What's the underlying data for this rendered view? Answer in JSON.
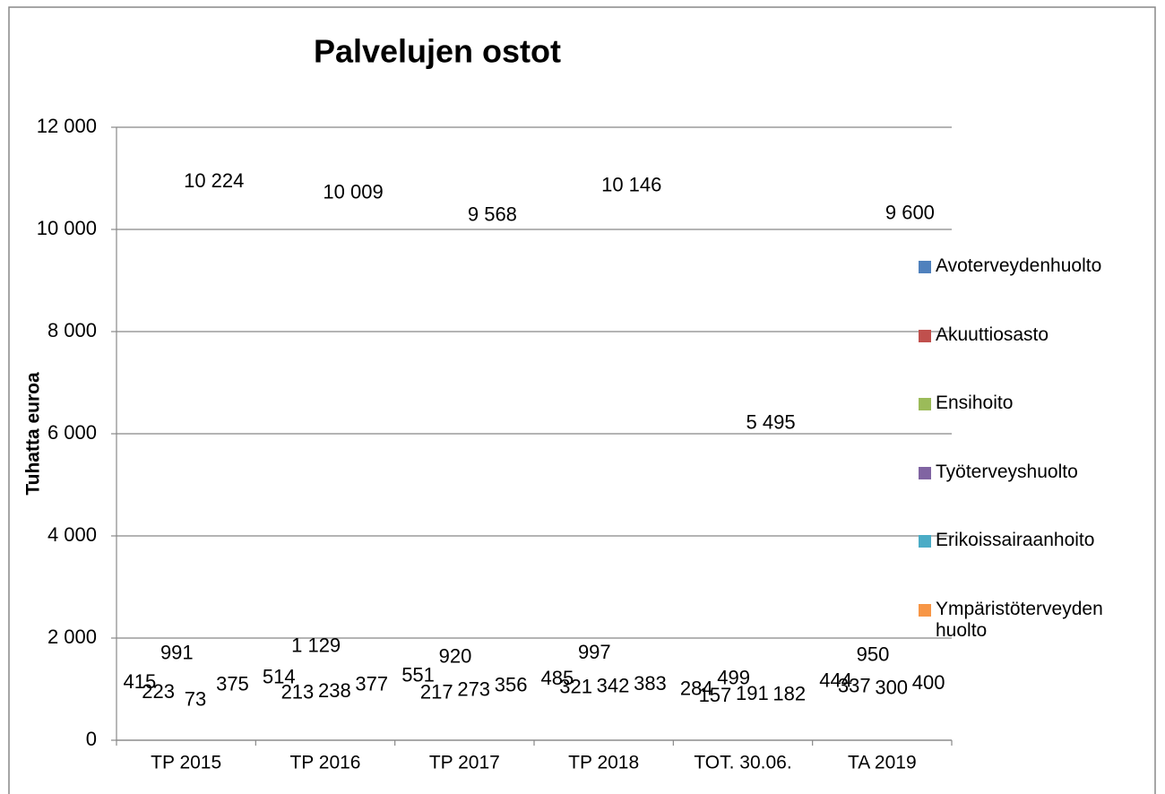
{
  "chart_data": {
    "type": "bar",
    "title": "Palvelujen ostot",
    "y_label": "Tuhatta euroa",
    "categories": [
      "TP 2015",
      "TP 2016",
      "TP 2017",
      "TP 2018",
      "TOT. 30.06.",
      "TA 2019"
    ],
    "series": [
      {
        "name": "Avoterveydenhuolto",
        "color": "#4F81BD",
        "values": [
          415,
          514,
          551,
          485,
          284,
          444
        ],
        "value_labels": [
          "415",
          "514",
          "551",
          "485",
          "284",
          "444"
        ]
      },
      {
        "name": "Akuuttiosasto",
        "color": "#C0504D",
        "values": [
          223,
          213,
          217,
          321,
          157,
          337
        ],
        "value_labels": [
          "223",
          "213",
          "217",
          "321",
          "157",
          "337"
        ]
      },
      {
        "name": "Ensihoito",
        "color": "#9BBB59",
        "values": [
          991,
          1129,
          920,
          997,
          499,
          950
        ],
        "value_labels": [
          "991",
          "1 129",
          "920",
          "997",
          "499",
          "950"
        ]
      },
      {
        "name": "Työterveyshuolto",
        "color": "#8064A2",
        "values": [
          73,
          238,
          273,
          342,
          191,
          300
        ],
        "value_labels": [
          "73",
          "238",
          "273",
          "342",
          "191",
          "300"
        ]
      },
      {
        "name": "Erikoissairaanhoito",
        "color": "#4BACC6",
        "values": [
          10224,
          10009,
          9568,
          10146,
          5495,
          9600
        ],
        "value_labels": [
          "10 224",
          "10 009",
          "9 568",
          "10 146",
          "5 495",
          "9 600"
        ]
      },
      {
        "name": "Ympäristöterveyden huolto",
        "color": "#F79646",
        "values": [
          375,
          377,
          356,
          383,
          182,
          400
        ],
        "value_labels": [
          "375",
          "377",
          "356",
          "383",
          "182",
          "400"
        ]
      }
    ],
    "ylim": [
      0,
      12000
    ],
    "yticks": [
      0,
      {
        "value": 2000,
        "label": "2 000"
      },
      {
        "value": 4000,
        "label": "4 000"
      },
      {
        "value": 6000,
        "label": "6 000"
      },
      {
        "value": 8000,
        "label": "8 000"
      },
      {
        "value": 10000,
        "label": "10 000"
      },
      {
        "value": 12000,
        "label": "12 000"
      }
    ],
    "grid": true
  }
}
